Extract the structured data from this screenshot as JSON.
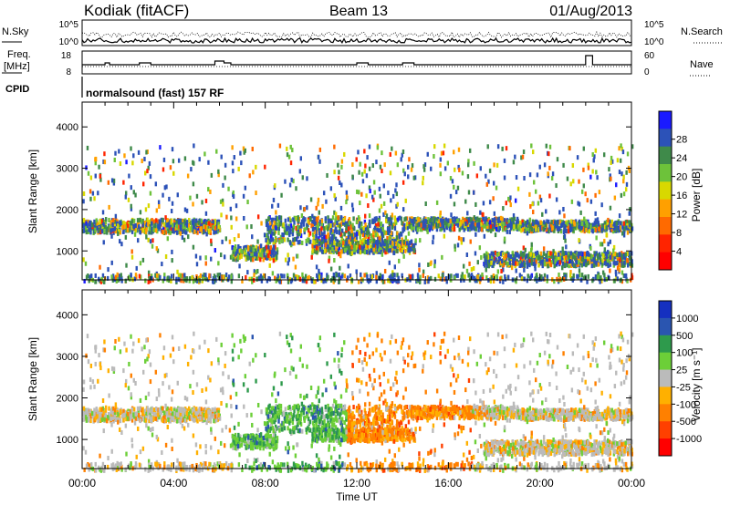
{
  "header": {
    "station": "Kodiak (fitACF)",
    "beam": "Beam 13",
    "date": "01/Aug/2013"
  },
  "chart_data": [
    {
      "type": "line",
      "panel": "noise",
      "left_label": "N.Sky",
      "right_label": "N.Search",
      "left_ticks": [
        "10^5",
        "10^0"
      ],
      "right_ticks": [
        "10^5",
        "10^0"
      ]
    },
    {
      "type": "line",
      "panel": "frequency",
      "left_label_line1": "Freq.",
      "left_label_line2": "[MHz]",
      "left_ticks": [
        18,
        8
      ],
      "right_label": "Nave",
      "right_ticks": [
        60,
        0
      ]
    },
    {
      "type": "text",
      "panel": "cpid",
      "left_label": "CPID",
      "text": "normalsound (fast) 157 RF"
    },
    {
      "type": "heatmap",
      "panel": "power",
      "ylabel": "Slant Range [km]",
      "yticks": [
        1000,
        2000,
        3000,
        4000
      ],
      "ylim": [
        300,
        4600
      ],
      "xlim": [
        0,
        24
      ],
      "colorbar_label": "Power [dB]",
      "colorbar_ticks": [
        "4",
        "8",
        "12",
        "16",
        "20",
        "24",
        "28"
      ],
      "colors": [
        "#1a1aff",
        "#2c52b8",
        "#3f8a4a",
        "#6dc23a",
        "#d8d800",
        "#ffa000",
        "#ff6a00",
        "#ff2400",
        "#ff0000"
      ]
    },
    {
      "type": "heatmap",
      "panel": "velocity",
      "ylabel": "Slant Range [km]",
      "yticks": [
        1000,
        2000,
        3000,
        4000
      ],
      "ylim": [
        300,
        4600
      ],
      "xlim": [
        0,
        24
      ],
      "xticks": [
        "00:00",
        "04:00",
        "08:00",
        "12:00",
        "16:00",
        "20:00",
        "00:00"
      ],
      "xlabel": "Time UT",
      "colorbar_label": "Velocity [m s⁻¹]",
      "colorbar_ticks": [
        "1000",
        "500",
        "100",
        "25",
        "-25",
        "-100",
        "-500",
        "-1000"
      ],
      "colors": [
        "#1530c0",
        "#2a55b0",
        "#2e9a4c",
        "#6ccf38",
        "#bbbbbb",
        "#ffb000",
        "#ff8000",
        "#ff4000",
        "#ff0000"
      ]
    }
  ]
}
